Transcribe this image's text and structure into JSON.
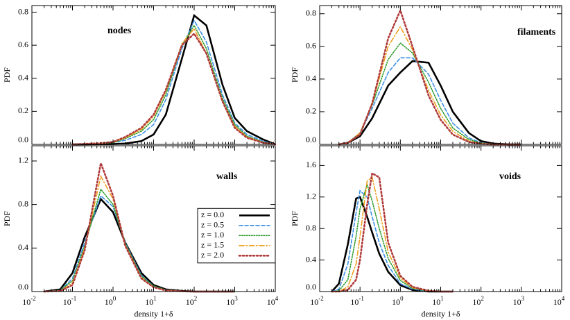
{
  "chart_data": [
    {
      "type": "line",
      "annotation": "nodes",
      "y_label": "PDF",
      "xscale": "log",
      "x_tick_labels": false,
      "xlim": [
        0.01,
        10000
      ],
      "ylim": [
        0,
        0.84
      ],
      "xticks": [
        0.01,
        0.1,
        1,
        10,
        100,
        1000,
        10000
      ],
      "yticks": [
        {
          "value": 0,
          "label": "0.0"
        },
        0.2,
        0.4,
        0.6,
        0.8
      ],
      "x": [
        0.1,
        0.5,
        1,
        2,
        5,
        10,
        20,
        50,
        100,
        200,
        500,
        1000,
        2000,
        5000,
        10000
      ],
      "series": [
        {
          "color": "#000000",
          "style": "solid",
          "values": [
            0,
            0.001,
            0.002,
            0.005,
            0.02,
            0.06,
            0.18,
            0.52,
            0.78,
            0.72,
            0.36,
            0.16,
            0.08,
            0.03,
            0
          ]
        },
        {
          "color": "#3a8ee6",
          "style": "dashed",
          "values": [
            0,
            0.005,
            0.01,
            0.025,
            0.06,
            0.12,
            0.27,
            0.58,
            0.75,
            0.62,
            0.3,
            0.13,
            0.06,
            0.02,
            0
          ]
        },
        {
          "color": "#2a9a2a",
          "style": "dotted",
          "values": [
            0,
            0.005,
            0.01,
            0.035,
            0.08,
            0.15,
            0.3,
            0.6,
            0.72,
            0.58,
            0.28,
            0.12,
            0.05,
            0.015,
            0
          ]
        },
        {
          "color": "#f0a020",
          "style": "dashdot",
          "values": [
            0,
            0.006,
            0.012,
            0.04,
            0.09,
            0.17,
            0.32,
            0.61,
            0.7,
            0.55,
            0.26,
            0.11,
            0.045,
            0.012,
            0
          ]
        },
        {
          "color": "#b03a3a",
          "style": "dotted-wide",
          "values": [
            0,
            0.007,
            0.015,
            0.045,
            0.1,
            0.18,
            0.33,
            0.6,
            0.67,
            0.55,
            0.26,
            0.1,
            0.04,
            0.01,
            0
          ]
        }
      ]
    },
    {
      "type": "line",
      "annotation": "filaments",
      "xscale": "log",
      "x_tick_labels": false,
      "xlim": [
        0.01,
        10000
      ],
      "ylim": [
        0,
        0.85
      ],
      "xticks": [
        0.01,
        0.1,
        1,
        10,
        100,
        1000,
        10000
      ],
      "yticks": [
        {
          "value": 0,
          "label": "0.0"
        },
        0.2,
        0.4,
        0.6,
        0.8
      ],
      "x": [
        0.03,
        0.05,
        0.1,
        0.2,
        0.5,
        1,
        2,
        5,
        10,
        20,
        50,
        100,
        200,
        500,
        1000
      ],
      "series": [
        {
          "color": "#000000",
          "style": "solid",
          "values": [
            0,
            0.01,
            0.05,
            0.16,
            0.36,
            0.44,
            0.51,
            0.5,
            0.36,
            0.2,
            0.07,
            0.02,
            0.005,
            0,
            0
          ]
        },
        {
          "color": "#3a8ee6",
          "style": "dashed",
          "values": [
            0,
            0.01,
            0.07,
            0.22,
            0.44,
            0.53,
            0.53,
            0.43,
            0.27,
            0.13,
            0.04,
            0.01,
            0,
            0,
            0
          ]
        },
        {
          "color": "#2a9a2a",
          "style": "dotted",
          "values": [
            0,
            0.01,
            0.07,
            0.24,
            0.52,
            0.62,
            0.56,
            0.38,
            0.22,
            0.1,
            0.03,
            0.008,
            0,
            0,
            0
          ]
        },
        {
          "color": "#f0a020",
          "style": "dashdot",
          "values": [
            0,
            0.01,
            0.07,
            0.25,
            0.6,
            0.72,
            0.58,
            0.33,
            0.18,
            0.08,
            0.02,
            0.005,
            0,
            0,
            0
          ]
        },
        {
          "color": "#b03a3a",
          "style": "dotted-wide",
          "values": [
            0,
            0.01,
            0.06,
            0.25,
            0.65,
            0.82,
            0.6,
            0.3,
            0.15,
            0.06,
            0.015,
            0.003,
            0,
            0,
            0
          ]
        }
      ]
    },
    {
      "type": "line",
      "annotation": "walls",
      "y_label": "PDF",
      "x_label": "density 1+δ",
      "xscale": "log",
      "legend": "right",
      "xlim": [
        0.01,
        10000
      ],
      "ylim": [
        0,
        1.34
      ],
      "xticks": [
        {
          "value": 0.01,
          "label": "10",
          "sup": "-2"
        },
        {
          "value": 0.1,
          "label": "10",
          "sup": "-1"
        },
        {
          "value": 1,
          "label": "10",
          "sup": "0"
        },
        {
          "value": 10,
          "label": "10",
          "sup": "1"
        },
        {
          "value": 100,
          "label": "10",
          "sup": "2"
        },
        {
          "value": 1000,
          "label": "10",
          "sup": "3"
        },
        {
          "value": 10000,
          "label": "10",
          "sup": "4"
        }
      ],
      "yticks": [
        {
          "value": 0,
          "label": "0.0"
        },
        0.4,
        0.8,
        1.2
      ],
      "x": [
        0.02,
        0.05,
        0.1,
        0.2,
        0.5,
        1,
        2,
        5,
        10,
        20,
        50,
        100,
        200,
        500,
        1000
      ],
      "series": [
        {
          "name": "z = 0.0",
          "color": "#000000",
          "style": "solid",
          "values": [
            0,
            0.02,
            0.17,
            0.5,
            0.85,
            0.73,
            0.45,
            0.17,
            0.06,
            0.02,
            0.005,
            0,
            0,
            0,
            0
          ]
        },
        {
          "name": "z = 0.5",
          "color": "#3a8ee6",
          "style": "dashed",
          "values": [
            0,
            0.01,
            0.12,
            0.45,
            0.88,
            0.78,
            0.45,
            0.15,
            0.05,
            0.015,
            0.004,
            0,
            0,
            0,
            0
          ]
        },
        {
          "name": "z = 1.0",
          "color": "#2a9a2a",
          "style": "dotted",
          "values": [
            0,
            0.01,
            0.1,
            0.42,
            0.94,
            0.8,
            0.44,
            0.14,
            0.05,
            0.015,
            0.003,
            0,
            0,
            0,
            0
          ]
        },
        {
          "name": "z = 1.5",
          "color": "#f0a020",
          "style": "dashdot",
          "values": [
            0,
            0.005,
            0.08,
            0.4,
            1.06,
            0.85,
            0.43,
            0.13,
            0.04,
            0.012,
            0.003,
            0,
            0,
            0,
            0
          ]
        },
        {
          "name": "z = 2.0",
          "color": "#b03a3a",
          "style": "dotted-wide",
          "values": [
            0,
            0.005,
            0.06,
            0.38,
            1.18,
            0.88,
            0.42,
            0.12,
            0.04,
            0.01,
            0.002,
            0,
            0,
            0,
            0
          ]
        }
      ]
    },
    {
      "type": "line",
      "annotation": "voids",
      "y_label": "PDF",
      "x_label": "density 1+δ",
      "xscale": "log",
      "xlim": [
        0.01,
        10000
      ],
      "ylim": [
        0,
        1.85
      ],
      "xticks": [
        {
          "value": 0.01,
          "label": "10",
          "sup": "-2"
        },
        {
          "value": 0.1,
          "label": "10",
          "sup": "-1"
        },
        {
          "value": 1,
          "label": "10",
          "sup": "0"
        },
        {
          "value": 10,
          "label": "10",
          "sup": "1"
        },
        {
          "value": 100,
          "label": "10",
          "sup": "2"
        },
        {
          "value": 1000,
          "label": "10",
          "sup": "3"
        },
        {
          "value": 10000,
          "label": "10",
          "sup": "4"
        }
      ],
      "yticks": [
        {
          "value": 0,
          "label": "0.0"
        },
        0.4,
        0.8,
        1.2,
        1.6
      ],
      "x": [
        0.02,
        0.03,
        0.05,
        0.08,
        0.1,
        0.15,
        0.2,
        0.3,
        0.5,
        1,
        2,
        5,
        10,
        20
      ],
      "series": [
        {
          "color": "#000000",
          "style": "solid",
          "values": [
            0,
            0.1,
            0.6,
            1.18,
            1.2,
            0.95,
            0.75,
            0.48,
            0.25,
            0.08,
            0.02,
            0,
            0,
            0
          ]
        },
        {
          "color": "#3a8ee6",
          "style": "dashed",
          "values": [
            0,
            0.03,
            0.35,
            1.0,
            1.28,
            1.2,
            0.95,
            0.62,
            0.33,
            0.1,
            0.03,
            0.005,
            0,
            0
          ]
        },
        {
          "color": "#2a9a2a",
          "style": "dotted",
          "values": [
            0,
            0.01,
            0.15,
            0.7,
            1.05,
            1.36,
            1.15,
            0.8,
            0.42,
            0.14,
            0.04,
            0.005,
            0,
            0
          ]
        },
        {
          "color": "#f0a020",
          "style": "dashdot",
          "values": [
            0,
            0,
            0.06,
            0.35,
            0.7,
            1.4,
            1.45,
            1.05,
            0.5,
            0.17,
            0.05,
            0.008,
            0,
            0
          ]
        },
        {
          "color": "#b03a3a",
          "style": "dotted-wide",
          "values": [
            0,
            0,
            0.02,
            0.15,
            0.4,
            1.1,
            1.5,
            1.45,
            0.62,
            0.2,
            0.06,
            0.01,
            0,
            0
          ]
        }
      ]
    }
  ]
}
